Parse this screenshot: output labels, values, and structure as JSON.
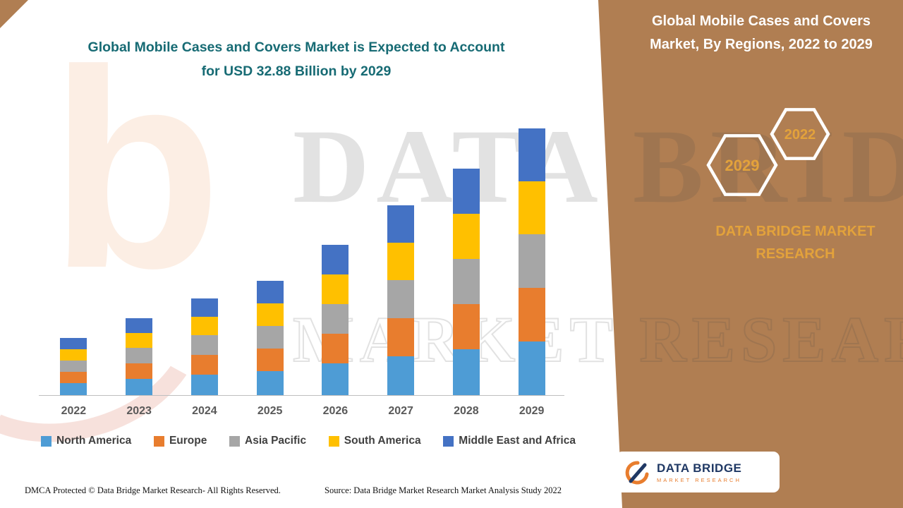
{
  "colors": {
    "panel": "#B07E52",
    "accent_gold": "#E3A23B",
    "title_teal": "#176B74"
  },
  "header": {
    "chart_title_line1": "Global Mobile Cases and Covers Market is Expected to Account",
    "chart_title_line2": "for USD 32.88 Billion by 2029"
  },
  "sidebar": {
    "title_line1": "Global Mobile Cases and Covers",
    "title_line2": "Market, By Regions, 2022 to 2029",
    "hexagon_back_label": "2029",
    "hexagon_front_label": "2022",
    "brand_line1": "DATA BRIDGE MARKET",
    "brand_line2": "RESEARCH",
    "logo_title": "DATA BRIDGE",
    "logo_subtitle": "MARKET RESEARCH"
  },
  "watermark": {
    "line1": "DATA BRIDGE",
    "line2": "MARKET RESEARCH",
    "logo_glyph": "b"
  },
  "footer": {
    "dmca": "DMCA Protected © Data Bridge Market Research- All Rights Reserved.",
    "source": "Source: Data Bridge Market Research Market Analysis Study 2022"
  },
  "chart_data": {
    "type": "bar",
    "stacked": true,
    "title": "Global Mobile Cases and Covers Market is Expected to Account for USD 32.88 Billion by 2029",
    "unit": "USD Billion",
    "categories": [
      "2022",
      "2023",
      "2024",
      "2025",
      "2026",
      "2027",
      "2028",
      "2029"
    ],
    "series": [
      {
        "name": "North America",
        "color": "#4E9CD5",
        "values": [
          1.5,
          2.0,
          2.5,
          3.0,
          3.9,
          4.8,
          5.7,
          6.6
        ]
      },
      {
        "name": "Europe",
        "color": "#E87D2E",
        "values": [
          1.4,
          1.9,
          2.4,
          2.8,
          3.7,
          4.7,
          5.6,
          6.6
        ]
      },
      {
        "name": "Asia Pacific",
        "color": "#A6A6A6",
        "values": [
          1.4,
          1.9,
          2.4,
          2.8,
          3.7,
          4.7,
          5.6,
          6.6
        ]
      },
      {
        "name": "South America",
        "color": "#FFC000",
        "values": [
          1.4,
          1.8,
          2.3,
          2.8,
          3.7,
          4.6,
          5.6,
          6.54
        ]
      },
      {
        "name": "Middle East and Africa",
        "color": "#4472C4",
        "values": [
          1.4,
          1.8,
          2.3,
          2.8,
          3.7,
          4.6,
          5.6,
          6.54
        ]
      }
    ],
    "totals": [
      7.1,
      9.4,
      11.9,
      14.2,
      18.7,
      23.4,
      28.1,
      32.88
    ],
    "xlabel": "",
    "ylabel": "",
    "ylim": [
      0,
      34
    ],
    "grid": false,
    "legend_position": "bottom"
  }
}
